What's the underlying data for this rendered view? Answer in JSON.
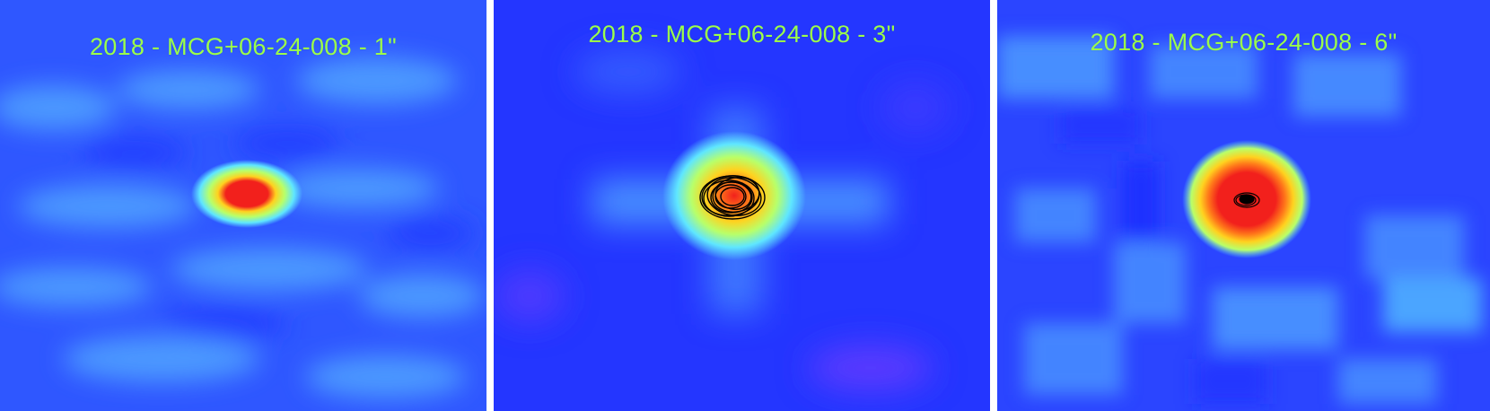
{
  "panels": [
    {
      "title": "2018 - MCG+06-24-008 - 1\""
    },
    {
      "title": "2018 - MCG+06-24-008 - 3\""
    },
    {
      "title": "2018 - MCG+06-24-008 - 6\""
    }
  ],
  "colors": {
    "background_low": "#2a3bff",
    "background_mid": "#4fa0ff",
    "halo_cyan": "#5fe6ff",
    "halo_green": "#b8ff6a",
    "ring_yellow": "#ffd21f",
    "ring_orange": "#ff7a1a",
    "core_red": "#f2201c",
    "title_text": "#9cff4a",
    "contour": "#000000"
  }
}
